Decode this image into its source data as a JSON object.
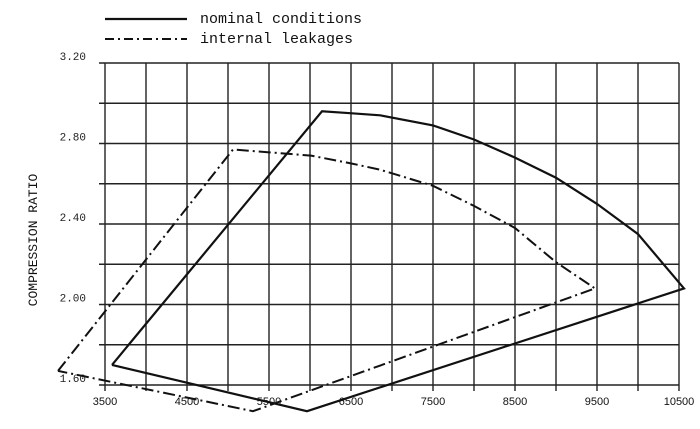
{
  "chart_data": {
    "type": "line",
    "title": "",
    "xlabel": "",
    "ylabel": "COMPRESSION RATIO",
    "xlim": [
      3500,
      10500
    ],
    "ylim": [
      1.6,
      3.2
    ],
    "x_ticks": [
      3500,
      4500,
      5500,
      6500,
      7500,
      8500,
      9500,
      10500
    ],
    "x_tick_labels": [
      "3500",
      "4500",
      "5500",
      "6500",
      "7500",
      "8500",
      "9500",
      "10500"
    ],
    "y_ticks": [
      1.6,
      2.0,
      2.4,
      2.8,
      3.2
    ],
    "y_tick_labels": [
      "1.60",
      "2.00",
      "2.40",
      "2.80",
      "3.20"
    ],
    "grid": true,
    "grid_x_step": 500,
    "grid_y_step": 0.2,
    "legend_position": "top",
    "series": [
      {
        "name": "nominal conditions",
        "style": "solid",
        "points": [
          [
            3585,
            1.7
          ],
          [
            6146,
            2.96
          ],
          [
            6512,
            2.95
          ],
          [
            6854,
            2.94
          ],
          [
            7500,
            2.89
          ],
          [
            8000,
            2.82
          ],
          [
            8500,
            2.73
          ],
          [
            9000,
            2.63
          ],
          [
            9500,
            2.5
          ],
          [
            10000,
            2.35
          ],
          [
            10561,
            2.08
          ],
          [
            5963,
            1.47
          ],
          [
            3585,
            1.7
          ]
        ]
      },
      {
        "name": "internal leakages",
        "style": "dash-dot",
        "points": [
          [
            2927,
            1.67
          ],
          [
            5061,
            2.77
          ],
          [
            6012,
            2.74
          ],
          [
            6512,
            2.7
          ],
          [
            6854,
            2.67
          ],
          [
            7500,
            2.59
          ],
          [
            8000,
            2.49
          ],
          [
            8500,
            2.38
          ],
          [
            9000,
            2.21
          ],
          [
            9476,
            2.08
          ],
          [
            5305,
            1.47
          ],
          [
            2927,
            1.67
          ]
        ]
      }
    ]
  },
  "legend": {
    "items": [
      {
        "label": "nominal conditions",
        "style": "solid"
      },
      {
        "label": "internal leakages",
        "style": "dash-dot"
      }
    ]
  },
  "axes": {
    "ylabel": "COMPRESSION RATIO"
  }
}
